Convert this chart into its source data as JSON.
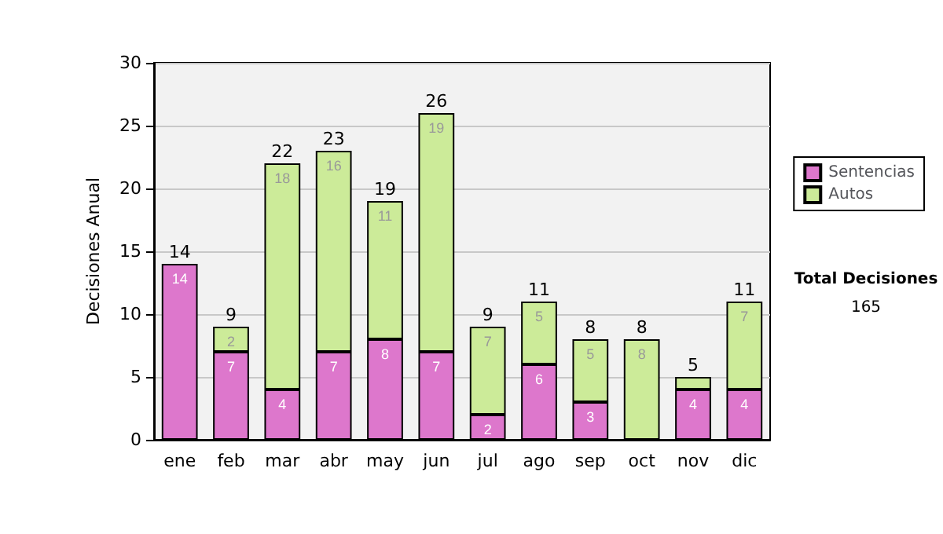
{
  "chart_data": {
    "type": "bar",
    "stacked": true,
    "ylabel": "Decisiones Anual",
    "categories": [
      "ene",
      "feb",
      "mar",
      "abr",
      "may",
      "jun",
      "jul",
      "ago",
      "sep",
      "oct",
      "nov",
      "dic"
    ],
    "series": [
      {
        "name": "Sentencias",
        "color": "#dd77cc",
        "values": [
          14,
          7,
          4,
          7,
          8,
          7,
          2,
          6,
          3,
          0,
          4,
          4
        ],
        "value_labels": [
          "14",
          "7",
          "4",
          "7",
          "8",
          "7",
          "2",
          "6",
          "3",
          null,
          "4",
          "4"
        ]
      },
      {
        "name": "Autos",
        "color": "#cceb99",
        "values": [
          0,
          2,
          18,
          16,
          11,
          19,
          7,
          5,
          5,
          8,
          1,
          7
        ],
        "value_labels": [
          null,
          "2",
          "18",
          "16",
          "11",
          "19",
          "7",
          "5",
          "5",
          "8",
          null,
          "7"
        ]
      }
    ],
    "totals": [
      "14",
      "9",
      "22",
      "23",
      "19",
      "26",
      "9",
      "11",
      "8",
      "8",
      "5",
      "11"
    ],
    "ylim": [
      0,
      30
    ],
    "yticks": [
      0,
      5,
      10,
      15,
      20,
      25,
      30
    ],
    "grid": "y",
    "legend": "right",
    "annotations": [
      "Total Decisiones",
      "165"
    ]
  }
}
